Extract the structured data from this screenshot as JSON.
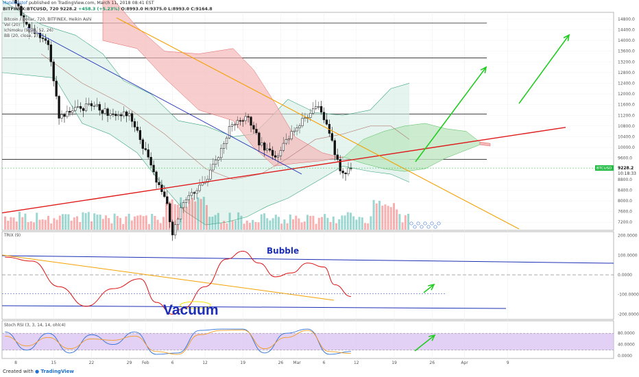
{
  "header": {
    "user": "MateKristof",
    "published_text": "published on TradingView.com, March 11, 2018 08:41 EST",
    "symbol_line": "BITFINEX:BTCUSD, 720",
    "price": "9228.2",
    "change": "+458.3 (+5.23%)",
    "ohlc": "O:8993.0 H:9375.0 L:8993.0 C:9164.8"
  },
  "indicators": [
    "Bitcoin / Dollar, 720, BITFINEX, Heikin Ashi",
    "Vol (20)",
    "Ichimoku (9, 26, 52, 26)",
    "BB (20, close, 2)"
  ],
  "colors": {
    "up": "#26a69a",
    "down": "#ef5350",
    "red_line": "#e01b1b",
    "orange_line": "#f5a000",
    "blue_line": "#1c2fb6",
    "green_arrow": "#22cc22",
    "cloud_bull": "#bfe6c3",
    "cloud_bear": "#f4b8b8",
    "stoch_band": "#d8c0f2",
    "price_tag": "#22bb44"
  },
  "annotations": {
    "bubble": "Bubble",
    "vacuum": "Vacuum"
  },
  "footer": {
    "created_with": "Created with",
    "brand": "TradingView"
  },
  "chart_data": [
    {
      "type": "candlestick",
      "title": "BITFINEX:BTCUSD, 720, Heikin Ashi",
      "x_tick_labels": [
        "8",
        "15",
        "22",
        "29",
        "Feb",
        "6",
        "12",
        "19",
        "26",
        "Mar",
        "6",
        "12",
        "19",
        "26",
        "Apr",
        "9"
      ],
      "y_tick_labels": [
        "14800.0",
        "14400.0",
        "14000.0",
        "13600.0",
        "13200.0",
        "12800.0",
        "12400.0",
        "12000.0",
        "11600.0",
        "11200.0",
        "10800.0",
        "10400.0",
        "10000.0",
        "9600.0",
        "9228.2",
        "8800.0",
        "8400.0",
        "8000.0",
        "7600.0",
        "7200.0"
      ],
      "ylim": [
        7000,
        14900
      ],
      "last_price": "9228.2",
      "countdown": "10:18:33",
      "price_label": "BTCUSD",
      "approx_close_path": [
        {
          "date": "2018-01-06",
          "close": 16500
        },
        {
          "date": "2018-01-10",
          "close": 14500
        },
        {
          "date": "2018-01-14",
          "close": 13900
        },
        {
          "date": "2018-01-16",
          "close": 11200
        },
        {
          "date": "2018-01-18",
          "close": 11300
        },
        {
          "date": "2018-01-22",
          "close": 11600
        },
        {
          "date": "2018-01-26",
          "close": 11200
        },
        {
          "date": "2018-01-29",
          "close": 11300
        },
        {
          "date": "2018-02-01",
          "close": 9800
        },
        {
          "date": "2018-02-03",
          "close": 8800
        },
        {
          "date": "2018-02-05",
          "close": 7800
        },
        {
          "date": "2018-02-06",
          "close": 6800
        },
        {
          "date": "2018-02-08",
          "close": 8000
        },
        {
          "date": "2018-02-10",
          "close": 8400
        },
        {
          "date": "2018-02-12",
          "close": 8600
        },
        {
          "date": "2018-02-14",
          "close": 9500
        },
        {
          "date": "2018-02-17",
          "close": 10900
        },
        {
          "date": "2018-02-20",
          "close": 11200
        },
        {
          "date": "2018-02-22",
          "close": 10200
        },
        {
          "date": "2018-02-25",
          "close": 9600
        },
        {
          "date": "2018-02-28",
          "close": 10500
        },
        {
          "date": "2018-03-02",
          "close": 11000
        },
        {
          "date": "2018-03-05",
          "close": 11500
        },
        {
          "date": "2018-03-07",
          "close": 10500
        },
        {
          "date": "2018-03-09",
          "close": 9100
        },
        {
          "date": "2018-03-11",
          "close": 9164.8
        }
      ]
    },
    {
      "type": "line",
      "title": "TRIX (9)",
      "y_tick_labels": [
        "200.0000",
        "100.0000",
        "0.0000",
        "-100.0000",
        "-200.0000"
      ],
      "ylim": [
        -230,
        210
      ],
      "x": [
        "2018-01-06",
        "2018-01-11",
        "2018-01-16",
        "2018-01-21",
        "2018-01-26",
        "2018-01-31",
        "2018-02-03",
        "2018-02-06",
        "2018-02-08",
        "2018-02-12",
        "2018-02-16",
        "2018-02-19",
        "2018-02-22",
        "2018-02-25",
        "2018-02-28",
        "2018-03-03",
        "2018-03-06",
        "2018-03-08",
        "2018-03-11"
      ],
      "series": [
        {
          "values": [
            90,
            70,
            -60,
            -160,
            -70,
            -20,
            -140,
            -200,
            -170,
            -60,
            80,
            120,
            60,
            -10,
            10,
            60,
            40,
            -50,
            -110
          ]
        }
      ]
    },
    {
      "type": "line",
      "title": "Stoch RSI (3, 3, 14, 14, ohlc4)",
      "y_tick_labels": [
        "80.0000",
        "40.0000",
        "0.0000"
      ],
      "ylim": [
        -10,
        100
      ],
      "band": [
        20,
        80
      ],
      "x": [
        "2018-01-06",
        "2018-01-10",
        "2018-01-14",
        "2018-01-18",
        "2018-01-22",
        "2018-01-26",
        "2018-01-30",
        "2018-02-03",
        "2018-02-07",
        "2018-02-11",
        "2018-02-15",
        "2018-02-19",
        "2018-02-23",
        "2018-02-27",
        "2018-03-03",
        "2018-03-07",
        "2018-03-11"
      ],
      "series": [
        {
          "values": [
            85,
            20,
            80,
            10,
            75,
            40,
            85,
            5,
            10,
            90,
            95,
            95,
            10,
            80,
            95,
            5,
            15
          ]
        },
        {
          "values": [
            70,
            35,
            65,
            25,
            60,
            55,
            70,
            15,
            5,
            75,
            90,
            92,
            25,
            65,
            90,
            15,
            8
          ]
        }
      ]
    }
  ]
}
